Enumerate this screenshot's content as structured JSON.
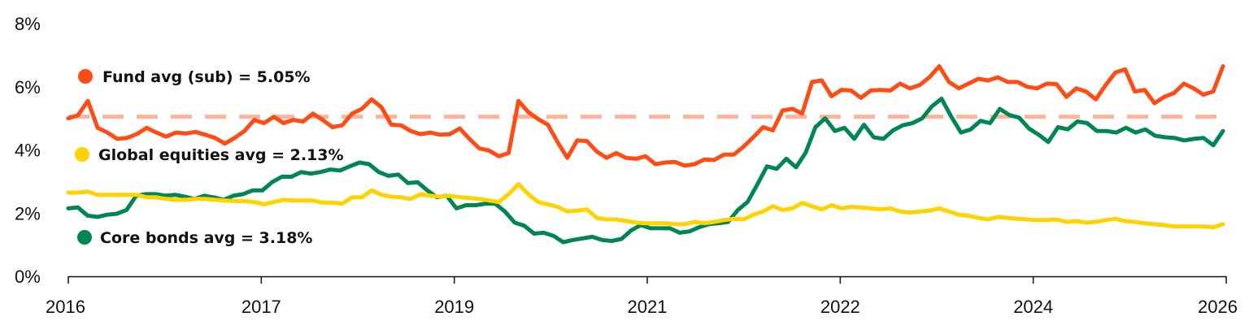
{
  "chart_data": {
    "type": "line",
    "title": "",
    "xlabel": "",
    "ylabel": "",
    "ylim": [
      0,
      8
    ],
    "y_ticks": [
      "0%",
      "2%",
      "4%",
      "6%",
      "8%"
    ],
    "x_ticks": [
      "2016",
      "2017",
      "2019",
      "2021",
      "2022",
      "2024",
      "2026"
    ],
    "grid": false,
    "reference_line": {
      "name": "Fund average",
      "value": 5.05,
      "color": "#FDB39C"
    },
    "series": [
      {
        "name": "Fund",
        "color": "#FF4B14",
        "legend": "Fund avg (sub) = 5.05%",
        "values": [
          5.0,
          5.1,
          5.55,
          4.7,
          4.55,
          4.35,
          4.38,
          4.5,
          4.7,
          4.55,
          4.42,
          4.55,
          4.52,
          4.57,
          4.48,
          4.38,
          4.2,
          4.38,
          4.6,
          4.95,
          4.85,
          5.05,
          4.85,
          4.95,
          4.9,
          5.15,
          4.95,
          4.72,
          4.78,
          5.15,
          5.3,
          5.6,
          5.35,
          4.8,
          4.78,
          4.6,
          4.5,
          4.55,
          4.48,
          4.5,
          4.68,
          4.35,
          4.05,
          3.98,
          3.8,
          3.9,
          5.55,
          5.2,
          4.98,
          4.8,
          4.25,
          3.75,
          4.3,
          4.28,
          3.95,
          3.75,
          3.9,
          3.75,
          3.72,
          3.8,
          3.55,
          3.6,
          3.62,
          3.5,
          3.55,
          3.7,
          3.68,
          3.85,
          3.85,
          4.1,
          4.4,
          4.72,
          4.62,
          5.25,
          5.3,
          5.15,
          6.15,
          6.2,
          5.7,
          5.9,
          5.88,
          5.65,
          5.88,
          5.9,
          5.88,
          6.1,
          5.95,
          6.05,
          6.3,
          6.65,
          6.15,
          5.95,
          6.1,
          6.25,
          6.2,
          6.3,
          6.15,
          6.15,
          6.0,
          5.95,
          6.1,
          6.08,
          5.68,
          5.95,
          5.85,
          5.6,
          6.05,
          6.45,
          6.55,
          5.85,
          5.9,
          5.48,
          5.68,
          5.8,
          6.1,
          5.95,
          5.75,
          5.85,
          6.65
        ]
      },
      {
        "name": "Global equities",
        "color": "#FFD200",
        "legend": "Global equities avg = 2.13%",
        "values": [
          2.65,
          2.65,
          2.68,
          2.58,
          2.58,
          2.58,
          2.58,
          2.58,
          2.5,
          2.5,
          2.45,
          2.42,
          2.42,
          2.45,
          2.45,
          2.42,
          2.4,
          2.38,
          2.38,
          2.35,
          2.28,
          2.35,
          2.42,
          2.4,
          2.4,
          2.4,
          2.33,
          2.33,
          2.3,
          2.5,
          2.5,
          2.72,
          2.58,
          2.52,
          2.5,
          2.45,
          2.6,
          2.55,
          2.52,
          2.55,
          2.5,
          2.48,
          2.45,
          2.4,
          2.35,
          2.6,
          2.92,
          2.6,
          2.35,
          2.28,
          2.2,
          2.05,
          2.08,
          2.12,
          1.85,
          1.8,
          1.8,
          1.75,
          1.7,
          1.68,
          1.68,
          1.68,
          1.65,
          1.65,
          1.72,
          1.68,
          1.72,
          1.78,
          1.82,
          1.8,
          1.95,
          2.05,
          2.22,
          2.1,
          2.15,
          2.32,
          2.22,
          2.12,
          2.25,
          2.15,
          2.2,
          2.18,
          2.15,
          2.12,
          2.15,
          2.05,
          2.02,
          2.05,
          2.08,
          2.15,
          2.05,
          1.95,
          1.92,
          1.85,
          1.8,
          1.88,
          1.85,
          1.82,
          1.8,
          1.78,
          1.78,
          1.8,
          1.72,
          1.75,
          1.7,
          1.72,
          1.78,
          1.82,
          1.75,
          1.72,
          1.68,
          1.65,
          1.62,
          1.58,
          1.58,
          1.58,
          1.58,
          1.55,
          1.65
        ]
      },
      {
        "name": "Core bonds",
        "color": "#008652",
        "legend": "Core bonds avg = 3.18%",
        "values": [
          2.15,
          2.18,
          1.92,
          1.88,
          1.95,
          1.98,
          2.1,
          2.55,
          2.6,
          2.6,
          2.55,
          2.58,
          2.52,
          2.45,
          2.55,
          2.5,
          2.42,
          2.55,
          2.6,
          2.72,
          2.72,
          2.98,
          3.15,
          3.15,
          3.3,
          3.25,
          3.3,
          3.38,
          3.35,
          3.48,
          3.6,
          3.55,
          3.3,
          3.18,
          3.22,
          2.95,
          2.98,
          2.72,
          2.5,
          2.55,
          2.15,
          2.25,
          2.25,
          2.3,
          2.3,
          2.05,
          1.7,
          1.6,
          1.35,
          1.38,
          1.28,
          1.08,
          1.15,
          1.2,
          1.25,
          1.15,
          1.12,
          1.18,
          1.45,
          1.62,
          1.52,
          1.52,
          1.52,
          1.38,
          1.42,
          1.55,
          1.65,
          1.68,
          1.72,
          2.1,
          2.35,
          2.9,
          3.48,
          3.4,
          3.72,
          3.45,
          3.92,
          4.72,
          5.0,
          4.6,
          4.7,
          4.35,
          4.8,
          4.4,
          4.35,
          4.62,
          4.78,
          4.85,
          5.0,
          5.38,
          5.62,
          5.05,
          4.55,
          4.65,
          4.92,
          4.85,
          5.3,
          5.1,
          5.02,
          4.68,
          4.48,
          4.25,
          4.72,
          4.65,
          4.9,
          4.85,
          4.6,
          4.6,
          4.55,
          4.7,
          4.55,
          4.65,
          4.45,
          4.4,
          4.38,
          4.3,
          4.35,
          4.38,
          4.15,
          4.6
        ]
      }
    ]
  },
  "legend": {
    "fund": {
      "label": "Fund avg (sub) = 5.05%",
      "color": "#FF4B14"
    },
    "equities": {
      "label": "Global equities avg = 2.13%",
      "color": "#FFD200"
    },
    "bonds": {
      "label": "Core bonds avg = 3.18%",
      "color": "#008652"
    }
  }
}
